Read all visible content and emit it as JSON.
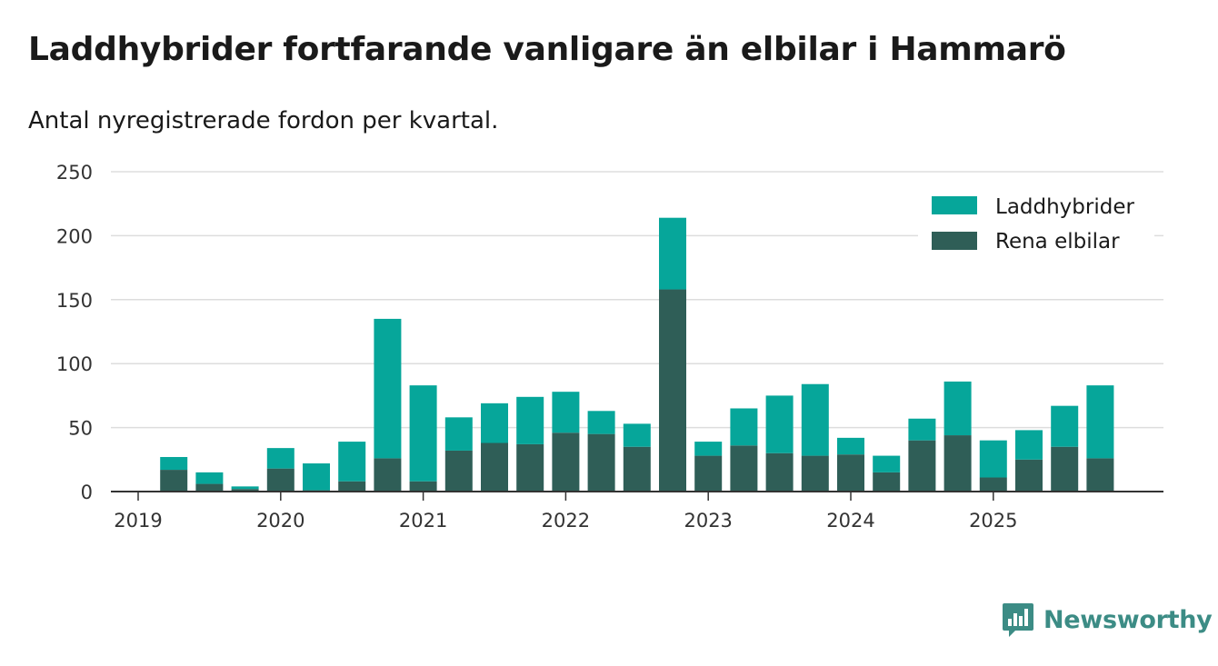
{
  "header": {
    "title": "Laddhybrider fortfarande vanligare än elbilar i Hammarö",
    "subtitle": "Antal nyregistrerade fordon per kvartal."
  },
  "brand": {
    "name": "Newsworthy",
    "icon": "newsworthy-logo-icon",
    "color": "#3c8c85"
  },
  "colors": {
    "hybrid": "#06a69a",
    "electric": "#2f5e57",
    "grid": "#dddddd",
    "axis": "#333333"
  },
  "chart_data": {
    "type": "bar",
    "stacked": true,
    "title": "Laddhybrider fortfarande vanligare än elbilar i Hammarö",
    "subtitle": "Antal nyregistrerade fordon per kvartal.",
    "xlabel": "",
    "ylabel": "",
    "ylim": [
      0,
      250
    ],
    "yticks": [
      0,
      50,
      100,
      150,
      200,
      250
    ],
    "year_ticks": [
      "2019",
      "2020",
      "2021",
      "2022",
      "2023",
      "2024",
      "2025"
    ],
    "categories": [
      "2019 Q1",
      "2019 Q2",
      "2019 Q3",
      "2019 Q4",
      "2020 Q1",
      "2020 Q2",
      "2020 Q3",
      "2020 Q4",
      "2021 Q1",
      "2021 Q2",
      "2021 Q3",
      "2021 Q4",
      "2022 Q1",
      "2022 Q2",
      "2022 Q3",
      "2022 Q4",
      "2023 Q1",
      "2023 Q2",
      "2023 Q3",
      "2023 Q4",
      "2024 Q1",
      "2024 Q2",
      "2024 Q3",
      "2024 Q4",
      "2025 Q1",
      "2025 Q2",
      "2025 Q3",
      "2025 Q4"
    ],
    "legend_position": "top-right",
    "grid": true,
    "series": [
      {
        "name": "Rena elbilar",
        "key": "electric",
        "values": [
          0,
          17,
          6,
          2,
          18,
          1,
          8,
          26,
          8,
          32,
          38,
          37,
          46,
          45,
          35,
          158,
          28,
          36,
          30,
          28,
          29,
          15,
          40,
          44,
          11,
          25,
          35,
          26
        ]
      },
      {
        "name": "Laddhybrider",
        "key": "hybrid",
        "values": [
          0,
          10,
          9,
          2,
          16,
          21,
          31,
          109,
          75,
          26,
          31,
          37,
          32,
          18,
          18,
          56,
          11,
          29,
          45,
          56,
          13,
          13,
          17,
          42,
          29,
          23,
          32,
          57
        ]
      }
    ]
  }
}
